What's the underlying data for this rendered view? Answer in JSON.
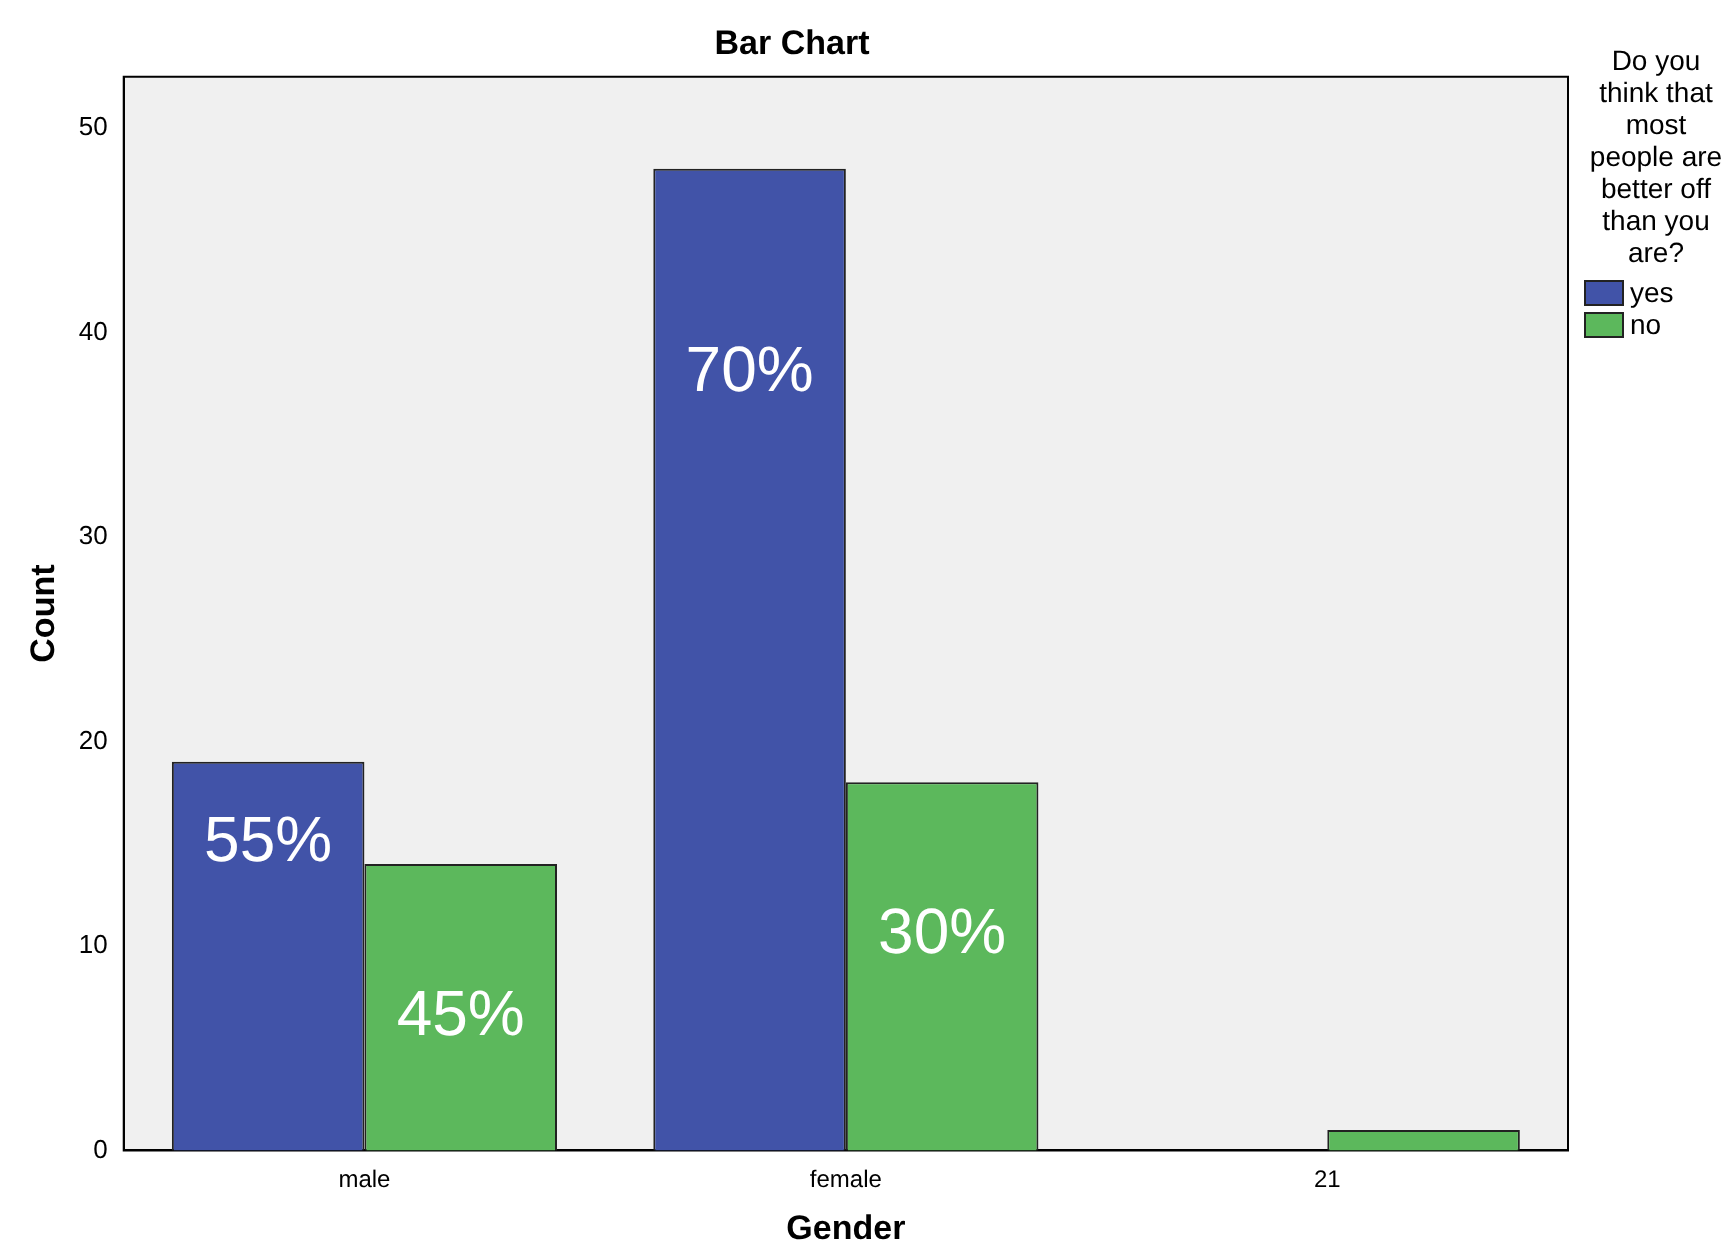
{
  "chart_data": {
    "type": "bar",
    "title": "Bar Chart",
    "xlabel": "Gender",
    "ylabel": "Count",
    "legend_title": "Do you think that most people are better off than you are?",
    "categories": [
      "male",
      "female",
      "21"
    ],
    "series": [
      {
        "name": "yes",
        "color": "#4153a8",
        "values": [
          19,
          48,
          null
        ]
      },
      {
        "name": "no",
        "color": "#5cb85c",
        "values": [
          14,
          18,
          1
        ]
      }
    ],
    "annotations": [
      {
        "text": "55%",
        "x": "male",
        "y": 15
      },
      {
        "text": "45%",
        "x": "male",
        "y": 6.5
      },
      {
        "text": "70%",
        "x": "female",
        "y": 38
      },
      {
        "text": "30%",
        "x": "female",
        "y": 10.5
      }
    ],
    "ylim": [
      0,
      52.5
    ],
    "yticks": [
      0,
      10,
      20,
      30,
      40,
      50
    ],
    "grid": false,
    "legend": "right"
  }
}
